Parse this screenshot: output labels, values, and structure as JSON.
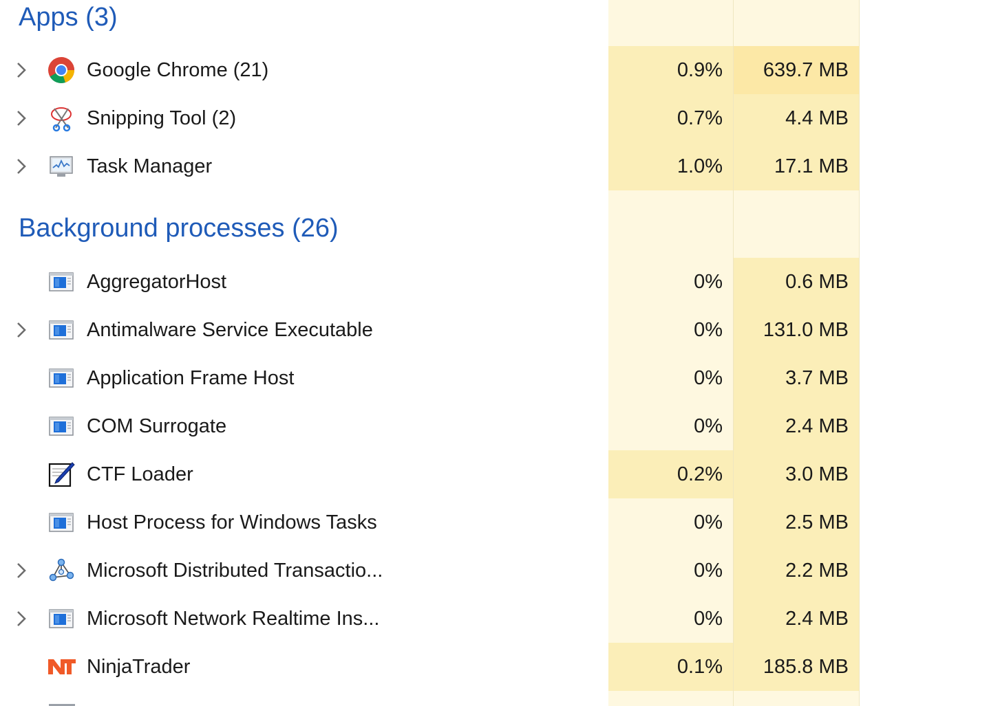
{
  "groups": {
    "apps": {
      "title": "Apps (3)"
    },
    "background": {
      "title": "Background processes (26)"
    }
  },
  "apps": [
    {
      "name": "Google Chrome (21)",
      "icon": "chrome-icon",
      "expandable": true,
      "cpu": "0.9%",
      "memory": "639.7 MB"
    },
    {
      "name": "Snipping Tool (2)",
      "icon": "snipping-tool-icon",
      "expandable": true,
      "cpu": "0.7%",
      "memory": "4.4 MB"
    },
    {
      "name": "Task Manager",
      "icon": "task-manager-icon",
      "expandable": true,
      "cpu": "1.0%",
      "memory": "17.1 MB"
    }
  ],
  "background": [
    {
      "name": "AggregatorHost",
      "icon": "window-app-icon",
      "expandable": false,
      "cpu": "0%",
      "memory": "0.6 MB"
    },
    {
      "name": "Antimalware Service Executable",
      "icon": "window-app-icon",
      "expandable": true,
      "cpu": "0%",
      "memory": "131.0 MB"
    },
    {
      "name": "Application Frame Host",
      "icon": "window-app-icon",
      "expandable": false,
      "cpu": "0%",
      "memory": "3.7 MB"
    },
    {
      "name": "COM Surrogate",
      "icon": "window-app-icon",
      "expandable": false,
      "cpu": "0%",
      "memory": "2.4 MB"
    },
    {
      "name": "CTF Loader",
      "icon": "ctf-loader-icon",
      "expandable": false,
      "cpu": "0.2%",
      "memory": "3.0 MB"
    },
    {
      "name": "Host Process for Windows Tasks",
      "icon": "window-app-icon",
      "expandable": false,
      "cpu": "0%",
      "memory": "2.5 MB"
    },
    {
      "name": "Microsoft Distributed Transactio...",
      "icon": "network-nodes-icon",
      "expandable": true,
      "cpu": "0%",
      "memory": "2.2 MB"
    },
    {
      "name": "Microsoft Network Realtime Ins...",
      "icon": "window-app-icon",
      "expandable": true,
      "cpu": "0%",
      "memory": "2.4 MB"
    },
    {
      "name": "NinjaTrader",
      "icon": "ninjatrader-icon",
      "expandable": false,
      "cpu": "0.1%",
      "memory": "185.8 MB"
    }
  ],
  "colors": {
    "group_title": "#1f5bb8",
    "column_bg": "#fef8e0",
    "heat_low": "#fbeeb8",
    "heat_high": "#fce8a6"
  }
}
